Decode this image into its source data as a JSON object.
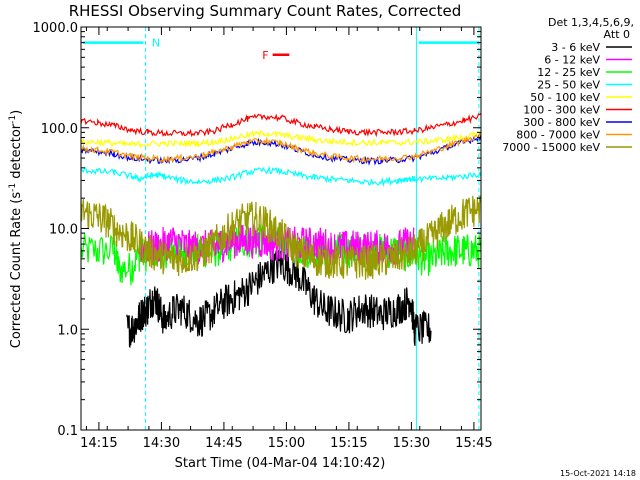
{
  "chart_data": {
    "type": "line",
    "title": "RHESSI Observing Summary Count Rates, Corrected",
    "xlabel": "Start Time (04-Mar-04 14:10:42)",
    "ylabel_main": "Corrected Count Rate (s",
    "ylabel_sup1": "-1",
    "ylabel_mid": " detector",
    "ylabel_sup2": "-1",
    "ylabel_end": ")",
    "y_scale": "log",
    "ylim": [
      0.1,
      1000
    ],
    "x_unit": "minutes since 14:10:42",
    "xlim": [
      0,
      96
    ],
    "x_ticks": [
      {
        "x": 4.3,
        "label": "14:15"
      },
      {
        "x": 19.3,
        "label": "14:30"
      },
      {
        "x": 34.3,
        "label": "14:45"
      },
      {
        "x": 49.3,
        "label": "15:00"
      },
      {
        "x": 64.3,
        "label": "15:15"
      },
      {
        "x": 79.3,
        "label": "15:30"
      },
      {
        "x": 94.3,
        "label": "15:45"
      }
    ],
    "y_ticks": [
      {
        "y": 0.1,
        "label": "0.1"
      },
      {
        "y": 1,
        "label": "1.0"
      },
      {
        "y": 10,
        "label": "10.0"
      },
      {
        "y": 100,
        "label": "100.0"
      },
      {
        "y": 1000,
        "label": "1000.0"
      }
    ],
    "legend_header": [
      "Det 1,3,4,5,6,9,",
      "Att 0"
    ],
    "legend_position": "right",
    "timestamp": "15-Oct-2021 14:18",
    "night_boundaries": [
      0,
      15.5,
      80.5,
      95.5
    ],
    "annotations": [
      {
        "text": "N",
        "x": 17,
        "y": 700,
        "color": "#00ffff"
      },
      {
        "text": "F",
        "x": 43.5,
        "y": 530,
        "color": "#ff0000"
      }
    ],
    "bars": [
      {
        "name": "N",
        "x0": 0.5,
        "x1": 15,
        "y": 700,
        "color": "#00ffff"
      },
      {
        "name": "N",
        "x0": 81,
        "x1": 95.5,
        "y": 700,
        "color": "#00ffff"
      },
      {
        "name": "F",
        "x0": 46,
        "x1": 50,
        "y": 530,
        "color": "#ff0000"
      }
    ],
    "series": [
      {
        "name": "3 - 6 keV",
        "color": "#000000",
        "x": [
          11,
          12,
          13,
          14,
          15,
          16,
          17,
          18,
          19,
          20,
          22,
          24,
          26,
          28,
          30,
          32,
          34,
          36,
          38,
          40,
          42,
          44,
          46,
          48,
          50,
          52,
          54,
          56,
          58,
          60,
          62,
          64,
          66,
          68,
          70,
          72,
          74,
          76,
          78,
          79,
          80,
          82,
          84
        ],
        "y": [
          1.0,
          1.0,
          1.1,
          1.3,
          1.5,
          1.6,
          2.0,
          2.0,
          1.5,
          1.2,
          1.5,
          1.6,
          1.4,
          1.2,
          1.3,
          1.5,
          1.8,
          2.0,
          2.2,
          2.5,
          3.0,
          3.5,
          4.2,
          4.5,
          4.0,
          3.5,
          2.6,
          2.0,
          1.6,
          1.5,
          1.4,
          1.3,
          1.5,
          1.6,
          1.5,
          1.4,
          1.5,
          1.6,
          1.8,
          2.0,
          1.0,
          1.0,
          1.0
        ]
      },
      {
        "name": "6 - 12 keV",
        "color": "#ff00ff",
        "x": [
          14,
          16,
          18,
          20,
          22,
          24,
          26,
          28,
          30,
          32,
          34,
          36,
          38,
          40,
          42,
          44,
          46,
          48,
          50,
          52,
          54,
          56,
          58,
          60,
          62,
          64,
          66,
          68,
          70,
          72,
          74,
          76,
          78,
          80
        ],
        "y": [
          6.5,
          6.5,
          6.5,
          7.0,
          7.5,
          7.0,
          6.5,
          6.5,
          6.5,
          6.5,
          7.0,
          7.5,
          7.5,
          7.5,
          7.5,
          7.5,
          7.0,
          7.0,
          7.0,
          7.0,
          7.0,
          7.0,
          7.0,
          6.5,
          6.5,
          6.5,
          6.5,
          6.5,
          6.5,
          6.5,
          6.5,
          6.5,
          7.0,
          7.0
        ]
      },
      {
        "name": "12 - 25 keV",
        "color": "#00ff00",
        "x": [
          0,
          4,
          8,
          9,
          12,
          14,
          16,
          18,
          20,
          22,
          24,
          26,
          28,
          30,
          32,
          34,
          36,
          38,
          40,
          42,
          44,
          46,
          48,
          50,
          52,
          54,
          56,
          58,
          60,
          62,
          64,
          66,
          68,
          70,
          72,
          74,
          76,
          78,
          80,
          82,
          84,
          86,
          88,
          90,
          92,
          94,
          96
        ],
        "y": [
          6.0,
          6.0,
          6.0,
          4.0,
          4.0,
          5.5,
          5.5,
          6.0,
          6.0,
          6.0,
          6.0,
          6.0,
          6.0,
          6.0,
          6.0,
          6.5,
          7.0,
          7.5,
          7.5,
          7.5,
          7.5,
          7.0,
          7.0,
          6.5,
          6.5,
          6.0,
          6.0,
          6.0,
          6.0,
          6.0,
          6.0,
          6.0,
          6.0,
          6.0,
          6.0,
          6.0,
          6.0,
          5.5,
          5.5,
          5.0,
          5.0,
          5.5,
          6.0,
          6.0,
          6.0,
          6.0,
          6.0
        ]
      },
      {
        "name": "25 - 50 keV",
        "color": "#00ffff",
        "x": [
          0,
          4,
          8,
          12,
          14,
          16,
          18,
          20,
          24,
          28,
          32,
          36,
          40,
          44,
          48,
          52,
          56,
          60,
          64,
          68,
          72,
          76,
          78,
          80,
          84,
          88,
          92,
          96
        ],
        "y": [
          38,
          37,
          36,
          33,
          31,
          33,
          34,
          33,
          30,
          29,
          30,
          32,
          36,
          38,
          37,
          34,
          32,
          31,
          30,
          29,
          29,
          30,
          31,
          31,
          31,
          32,
          33,
          35
        ]
      },
      {
        "name": "50 - 100 keV",
        "color": "#ffff00",
        "x": [
          0,
          4,
          8,
          12,
          16,
          20,
          24,
          28,
          32,
          36,
          40,
          44,
          48,
          52,
          56,
          60,
          64,
          68,
          72,
          76,
          80,
          84,
          88,
          92,
          96
        ],
        "y": [
          72,
          72,
          70,
          68,
          69,
          70,
          70,
          70,
          72,
          78,
          85,
          88,
          85,
          80,
          76,
          73,
          72,
          71,
          71,
          71,
          72,
          74,
          77,
          81,
          86
        ]
      },
      {
        "name": "100 - 300 keV",
        "color": "#ff0000",
        "x": [
          0,
          4,
          8,
          12,
          16,
          20,
          24,
          28,
          32,
          36,
          40,
          44,
          48,
          52,
          56,
          60,
          64,
          68,
          72,
          76,
          80,
          84,
          88,
          92,
          96
        ],
        "y": [
          118,
          112,
          105,
          95,
          90,
          88,
          88,
          88,
          92,
          108,
          122,
          130,
          125,
          112,
          102,
          96,
          92,
          90,
          90,
          91,
          93,
          100,
          108,
          118,
          130
        ]
      },
      {
        "name": "300 - 800 keV",
        "color": "#0000ff",
        "x": [
          0,
          4,
          8,
          12,
          16,
          20,
          24,
          28,
          32,
          36,
          40,
          44,
          48,
          52,
          56,
          60,
          64,
          68,
          72,
          76,
          80,
          84,
          88,
          92,
          96
        ],
        "y": [
          60,
          58,
          55,
          50,
          48,
          47,
          48,
          50,
          55,
          62,
          70,
          72,
          68,
          60,
          54,
          50,
          48,
          47,
          47,
          48,
          50,
          56,
          64,
          72,
          82
        ]
      },
      {
        "name": "800 - 7000 keV",
        "color": "#ff9900",
        "x": [
          0,
          4,
          8,
          12,
          16,
          20,
          24,
          28,
          32,
          36,
          40,
          44,
          48,
          52,
          56,
          60,
          64,
          68,
          72,
          76,
          80,
          84,
          88,
          92,
          96
        ],
        "y": [
          62,
          60,
          57,
          52,
          50,
          49,
          50,
          52,
          57,
          64,
          72,
          74,
          70,
          62,
          56,
          52,
          50,
          49,
          49,
          50,
          52,
          58,
          66,
          75,
          85
        ]
      },
      {
        "name": "7000 - 15000 keV",
        "color": "#999900",
        "x": [
          0,
          2,
          4,
          6,
          8,
          10,
          12,
          14,
          16,
          18,
          20,
          22,
          24,
          26,
          28,
          30,
          32,
          34,
          36,
          38,
          40,
          42,
          44,
          46,
          48,
          50,
          52,
          54,
          56,
          58,
          60,
          62,
          64,
          66,
          68,
          70,
          72,
          74,
          76,
          78,
          80,
          82,
          84,
          86,
          88,
          90,
          92,
          94,
          96
        ],
        "y": [
          15,
          14,
          13,
          12,
          10,
          9,
          8,
          7,
          6,
          5.5,
          5.2,
          5.0,
          5.0,
          5.2,
          5.5,
          6.0,
          7.0,
          8.5,
          10,
          11.5,
          12.5,
          12.5,
          11.5,
          10,
          8.5,
          7.0,
          6.0,
          5.3,
          5.0,
          4.8,
          4.7,
          4.6,
          4.6,
          4.6,
          4.6,
          4.7,
          4.8,
          5.0,
          5.2,
          5.5,
          6.0,
          7.0,
          8.0,
          9.5,
          11,
          12.5,
          14,
          15,
          16
        ]
      }
    ]
  }
}
